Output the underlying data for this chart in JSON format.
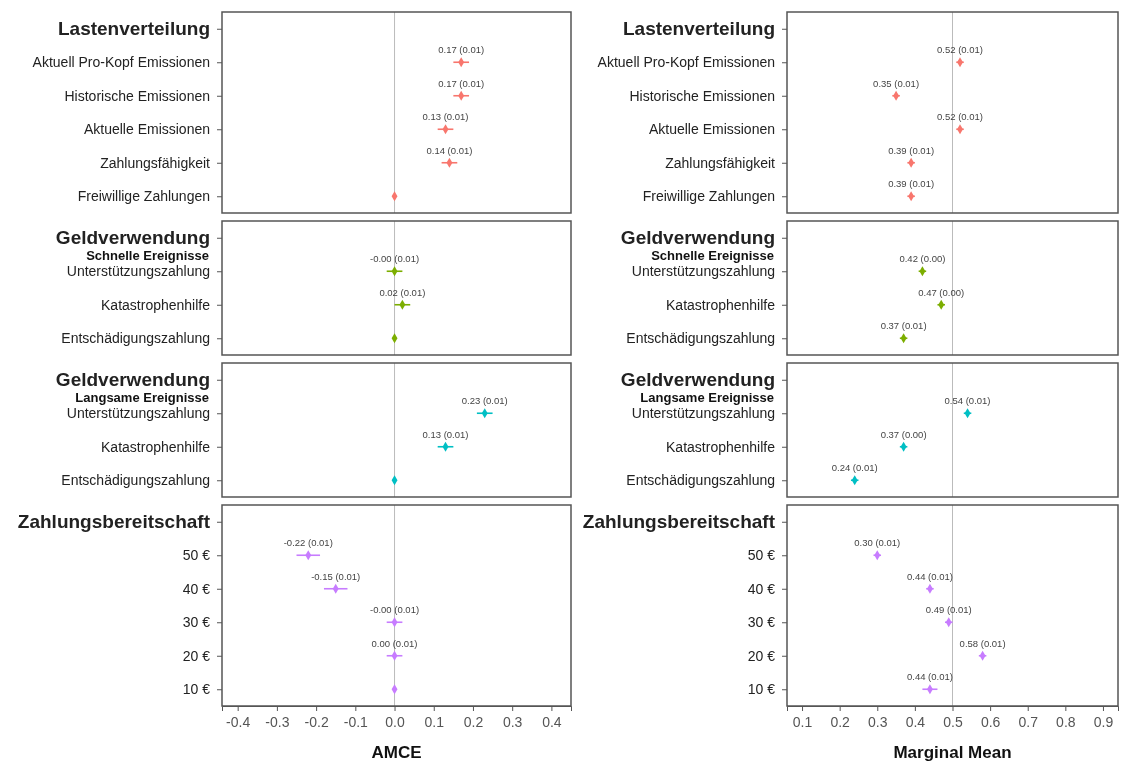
{
  "chart_data": [
    {
      "type": "scatter",
      "orientation": "horizontal",
      "categories": [
        "Lastenverteilung",
        "Aktuell  Pro-Kopf Emissionen",
        "Historische Emissionen",
        "Aktuelle  Emissionen",
        "Zahlungsfähigkeit",
        "Freiwillige Zahlungen"
      ],
      "values": [
        null,
        0.17,
        0.17,
        0.13,
        0.14,
        0
      ],
      "errors": [
        null,
        0.02,
        0.02,
        0.02,
        0.02,
        null
      ],
      "value_labels": [
        null,
        "0.17 (0.01)",
        "0.17 (0.01)",
        "0.13 (0.01)",
        "0.14 (0.01)",
        null
      ],
      "color": "#f8766d",
      "marker": "diamond",
      "xlim": [
        -0.44,
        0.45
      ],
      "tick_labels": "y",
      "ref_lines": [
        {
          "axis": "x",
          "value": 0,
          "color": "#bbbbbb"
        }
      ]
    },
    {
      "type": "scatter",
      "orientation": "horizontal",
      "categories": [
        "Lastenverteilung",
        "Aktuell  Pro-Kopf Emissionen",
        "Historische Emissionen",
        "Aktuelle  Emissionen",
        "Zahlungsfähigkeit",
        "Freiwillige Zahlungen"
      ],
      "values": [
        null,
        0.52,
        0.35,
        0.52,
        0.39,
        0.39
      ],
      "errors": [
        null,
        0.01,
        0.01,
        0.01,
        0.01,
        0.01
      ],
      "value_labels": [
        null,
        "0.52 (0.01)",
        "0.35 (0.01)",
        "0.52 (0.01)",
        "0.39 (0.01)",
        "0.39 (0.01)"
      ],
      "color": "#f8766d",
      "marker": "diamond",
      "xlim": [
        0.06,
        0.94
      ],
      "tick_labels": "y",
      "ref_lines": [
        {
          "axis": "x",
          "value": 0.5,
          "color": "#bbbbbb"
        }
      ]
    },
    {
      "type": "scatter",
      "orientation": "horizontal",
      "subtitle": "Schnelle Ereignisse",
      "categories": [
        "Geldverwendung",
        "Unterstützungszahlung",
        "Katastrophenhilfe",
        "Entschädigungszahlung"
      ],
      "values": [
        null,
        0,
        0.02,
        0
      ],
      "errors": [
        null,
        0.02,
        0.02,
        null
      ],
      "value_labels": [
        null,
        "-0.00 (0.01)",
        "0.02 (0.01)",
        null
      ],
      "color": "#7cae00",
      "marker": "diamond",
      "xlim": [
        -0.44,
        0.45
      ],
      "tick_labels": "y",
      "ref_lines": [
        {
          "axis": "x",
          "value": 0,
          "color": "#bbbbbb"
        }
      ]
    },
    {
      "type": "scatter",
      "orientation": "horizontal",
      "subtitle": "Schnelle Ereignisse",
      "categories": [
        "Geldverwendung",
        "Unterstützungszahlung",
        "Katastrophenhilfe",
        "Entschädigungszahlung"
      ],
      "values": [
        null,
        0.42,
        0.47,
        0.37
      ],
      "errors": [
        null,
        0.01,
        0.01,
        0.01
      ],
      "value_labels": [
        null,
        "0.42 (0.00)",
        "0.47 (0.00)",
        "0.37 (0.01)"
      ],
      "color": "#7cae00",
      "marker": "diamond",
      "xlim": [
        0.06,
        0.94
      ],
      "tick_labels": "y",
      "ref_lines": [
        {
          "axis": "x",
          "value": 0.5,
          "color": "#bbbbbb"
        }
      ]
    },
    {
      "type": "scatter",
      "orientation": "horizontal",
      "subtitle": "Langsame Ereignisse",
      "categories": [
        "Geldverwendung",
        "Unterstützungszahlung",
        "Katastrophenhilfe",
        "Entschädigungszahlung"
      ],
      "values": [
        null,
        0.23,
        0.13,
        0
      ],
      "errors": [
        null,
        0.02,
        0.02,
        null
      ],
      "value_labels": [
        null,
        "0.23 (0.01)",
        "0.13 (0.01)",
        null
      ],
      "color": "#00bfc4",
      "marker": "diamond",
      "xlim": [
        -0.44,
        0.45
      ],
      "tick_labels": "y",
      "ref_lines": [
        {
          "axis": "x",
          "value": 0,
          "color": "#bbbbbb"
        }
      ]
    },
    {
      "type": "scatter",
      "orientation": "horizontal",
      "subtitle": "Langsame Ereignisse",
      "categories": [
        "Geldverwendung",
        "Unterstützungszahlung",
        "Katastrophenhilfe",
        "Entschädigungszahlung"
      ],
      "values": [
        null,
        0.54,
        0.37,
        0.24
      ],
      "errors": [
        null,
        0.01,
        0.01,
        0.01
      ],
      "value_labels": [
        null,
        "0.54 (0.01)",
        "0.37 (0.00)",
        "0.24 (0.01)"
      ],
      "color": "#00bfc4",
      "marker": "diamond",
      "xlim": [
        0.06,
        0.94
      ],
      "tick_labels": "y",
      "ref_lines": [
        {
          "axis": "x",
          "value": 0.5,
          "color": "#bbbbbb"
        }
      ]
    },
    {
      "type": "scatter",
      "orientation": "horizontal",
      "categories": [
        "Zahlungsbereitschaft",
        "50 €",
        "40 €",
        "30 €",
        "20 €",
        "10 €"
      ],
      "values": [
        null,
        -0.22,
        -0.15,
        0,
        0,
        0
      ],
      "errors": [
        null,
        0.03,
        0.03,
        0.02,
        0.02,
        null
      ],
      "value_labels": [
        null,
        "-0.22 (0.01)",
        "-0.15 (0.01)",
        "-0.00 (0.01)",
        "0.00 (0.01)",
        null
      ],
      "color": "#c77cff",
      "marker": "diamond",
      "xlim": [
        -0.44,
        0.45
      ],
      "xticks": [
        -0.4,
        -0.3,
        -0.2,
        -0.1,
        {
          "value": 0,
          "label": "0.0"
        },
        0.1,
        0.2,
        0.3,
        0.4
      ],
      "xlabel": "AMCE",
      "ref_lines": [
        {
          "axis": "x",
          "value": 0,
          "color": "#bbbbbb"
        }
      ]
    },
    {
      "type": "scatter",
      "orientation": "horizontal",
      "categories": [
        "Zahlungsbereitschaft",
        "50 €",
        "40 €",
        "30 €",
        "20 €",
        "10 €"
      ],
      "values": [
        null,
        0.3,
        0.44,
        0.49,
        0.58,
        0.44
      ],
      "errors": [
        null,
        0.01,
        0.01,
        0.01,
        0.01,
        0.02
      ],
      "value_labels": [
        null,
        "0.30 (0.01)",
        "0.44 (0.01)",
        "0.49 (0.01)",
        "0.58 (0.01)",
        "0.44 (0.01)"
      ],
      "color": "#c77cff",
      "marker": "diamond",
      "xlim": [
        0.06,
        0.94
      ],
      "xticks": [
        0.1,
        0.2,
        0.3,
        0.4,
        0.5,
        0.6,
        0.7,
        0.8,
        0.9
      ],
      "xlabel": "Marginal Mean",
      "ref_lines": [
        {
          "axis": "x",
          "value": 0.5,
          "color": "#bbbbbb"
        }
      ]
    }
  ]
}
